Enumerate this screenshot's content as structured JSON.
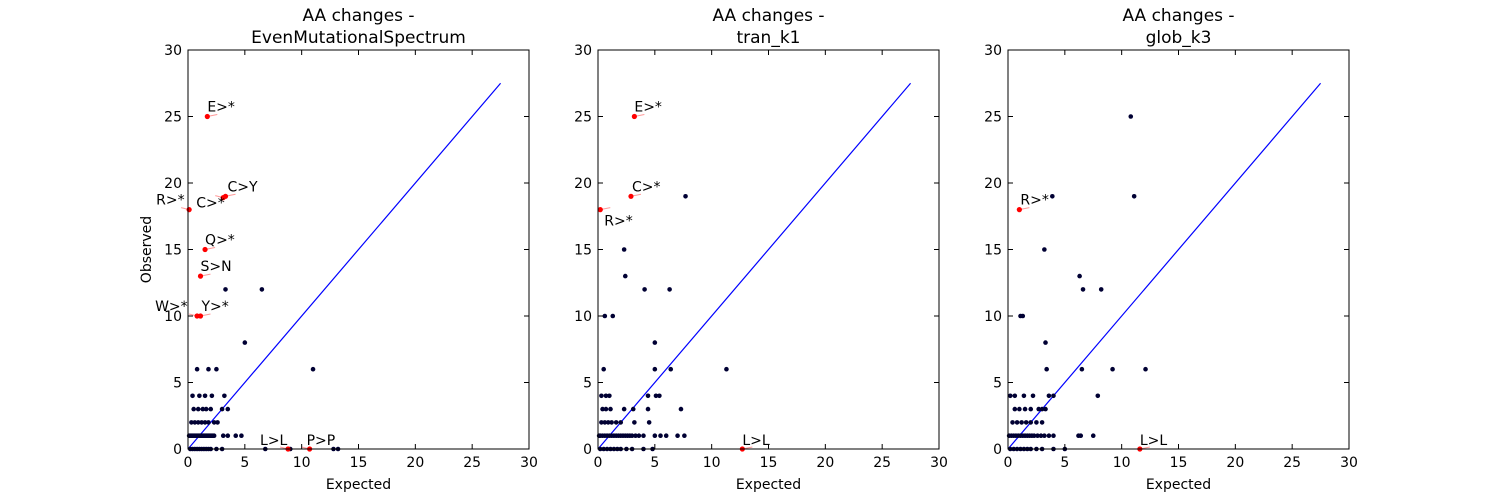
{
  "chart_data": [
    {
      "type": "scatter",
      "title": [
        "AA changes -",
        "EvenMutationalSpectrum"
      ],
      "xlabel": "Expected",
      "ylabel": "Observed",
      "xlim": [
        0,
        30
      ],
      "ylim": [
        0,
        30
      ],
      "xticks": [
        0,
        5,
        10,
        15,
        20,
        25,
        30
      ],
      "yticks": [
        0,
        5,
        10,
        15,
        20,
        25,
        30
      ],
      "diagonal": [
        0,
        27.5
      ],
      "colors": {
        "points": "#000033",
        "highlight": "#ff0000",
        "line": "#0000ff"
      },
      "points": [
        [
          0.1,
          1
        ],
        [
          0.2,
          1
        ],
        [
          0.3,
          1
        ],
        [
          0.4,
          1
        ],
        [
          0.5,
          1
        ],
        [
          0.6,
          1
        ],
        [
          0.7,
          1
        ],
        [
          0.8,
          1
        ],
        [
          0.9,
          1
        ],
        [
          1.0,
          1
        ],
        [
          1.1,
          1
        ],
        [
          1.2,
          1
        ],
        [
          1.3,
          1
        ],
        [
          1.4,
          1
        ],
        [
          1.5,
          1
        ],
        [
          1.6,
          1
        ],
        [
          1.7,
          1
        ],
        [
          1.8,
          1
        ],
        [
          1.9,
          1
        ],
        [
          2.0,
          1
        ],
        [
          2.1,
          1
        ],
        [
          2.2,
          1
        ],
        [
          2.3,
          1
        ],
        [
          0.2,
          0
        ],
        [
          0.4,
          0
        ],
        [
          0.6,
          0
        ],
        [
          0.8,
          0
        ],
        [
          1.0,
          0
        ],
        [
          1.2,
          0
        ],
        [
          1.4,
          0
        ],
        [
          1.6,
          0
        ],
        [
          1.8,
          0
        ],
        [
          2.0,
          0
        ],
        [
          2.5,
          0
        ],
        [
          3.0,
          0
        ],
        [
          0.3,
          2
        ],
        [
          0.6,
          2
        ],
        [
          0.9,
          2
        ],
        [
          1.2,
          2
        ],
        [
          1.5,
          2
        ],
        [
          1.8,
          2
        ],
        [
          2.3,
          2
        ],
        [
          2.6,
          2
        ],
        [
          0.5,
          3
        ],
        [
          0.9,
          3
        ],
        [
          1.3,
          3
        ],
        [
          1.6,
          3
        ],
        [
          2.0,
          3
        ],
        [
          3.0,
          3
        ],
        [
          3.5,
          3
        ],
        [
          0.4,
          4
        ],
        [
          1.0,
          4
        ],
        [
          1.5,
          4
        ],
        [
          2.1,
          4
        ],
        [
          3.2,
          4
        ],
        [
          0.8,
          6
        ],
        [
          1.8,
          6
        ],
        [
          2.5,
          6
        ],
        [
          3.1,
          1
        ],
        [
          3.5,
          1
        ],
        [
          4.2,
          1
        ],
        [
          4.7,
          1
        ],
        [
          3.3,
          12
        ],
        [
          6.5,
          12
        ],
        [
          5.0,
          8
        ],
        [
          11.0,
          6
        ],
        [
          6.8,
          0
        ],
        [
          9.0,
          0
        ],
        [
          12.8,
          0
        ],
        [
          13.2,
          0
        ]
      ],
      "highlights": [
        {
          "label": "E>*",
          "x": 1.7,
          "y": 25
        },
        {
          "label": "C>Y",
          "x": 3.3,
          "y": 19
        },
        {
          "label": "R>*",
          "x": 0.1,
          "y": 18
        },
        {
          "label": "C>*",
          "x": 3.1,
          "y": 18.9
        },
        {
          "label": "Q>*",
          "x": 1.5,
          "y": 15
        },
        {
          "label": "S>N",
          "x": 1.1,
          "y": 13
        },
        {
          "label": "W>*",
          "x": 0.8,
          "y": 10
        },
        {
          "label": "Y>*",
          "x": 1.1,
          "y": 10
        },
        {
          "label": "L>L",
          "x": 8.8,
          "y": 0
        },
        {
          "label": "P>P",
          "x": 10.7,
          "y": 0
        }
      ]
    },
    {
      "type": "scatter",
      "title": [
        "AA changes -",
        "tran_k1"
      ],
      "xlabel": "Expected",
      "ylabel": "",
      "xlim": [
        0,
        30
      ],
      "ylim": [
        0,
        30
      ],
      "xticks": [
        0,
        5,
        10,
        15,
        20,
        25,
        30
      ],
      "yticks": [
        0,
        5,
        10,
        15,
        20,
        25,
        30
      ],
      "diagonal": [
        0,
        27.5
      ],
      "colors": {
        "points": "#000033",
        "highlight": "#ff0000",
        "line": "#0000ff"
      },
      "points": [
        [
          0.1,
          1
        ],
        [
          0.2,
          1
        ],
        [
          0.4,
          1
        ],
        [
          0.6,
          1
        ],
        [
          0.8,
          1
        ],
        [
          1.0,
          1
        ],
        [
          1.2,
          1
        ],
        [
          1.4,
          1
        ],
        [
          1.6,
          1
        ],
        [
          1.8,
          1
        ],
        [
          2.0,
          1
        ],
        [
          2.2,
          1
        ],
        [
          2.4,
          1
        ],
        [
          2.6,
          1
        ],
        [
          2.8,
          1
        ],
        [
          3.0,
          1
        ],
        [
          3.3,
          1
        ],
        [
          3.6,
          1
        ],
        [
          4.0,
          1
        ],
        [
          5.0,
          1
        ],
        [
          5.5,
          1
        ],
        [
          6.0,
          1
        ],
        [
          7.0,
          1
        ],
        [
          7.6,
          1
        ],
        [
          0.2,
          0
        ],
        [
          0.5,
          0
        ],
        [
          0.8,
          0
        ],
        [
          1.1,
          0
        ],
        [
          1.4,
          0
        ],
        [
          1.7,
          0
        ],
        [
          2.0,
          0
        ],
        [
          2.5,
          0
        ],
        [
          3.0,
          0
        ],
        [
          4.0,
          0
        ],
        [
          4.8,
          0
        ],
        [
          0.3,
          2
        ],
        [
          0.6,
          2
        ],
        [
          0.9,
          2
        ],
        [
          1.2,
          2
        ],
        [
          1.6,
          2
        ],
        [
          2.0,
          2
        ],
        [
          3.2,
          2
        ],
        [
          4.5,
          2
        ],
        [
          0.4,
          3
        ],
        [
          0.7,
          3
        ],
        [
          1.1,
          3
        ],
        [
          2.3,
          3
        ],
        [
          3.1,
          3
        ],
        [
          4.4,
          3
        ],
        [
          7.3,
          3
        ],
        [
          0.3,
          4
        ],
        [
          0.7,
          4
        ],
        [
          1.0,
          4
        ],
        [
          4.4,
          4
        ],
        [
          5.1,
          4
        ],
        [
          5.4,
          4
        ],
        [
          0.5,
          6
        ],
        [
          5.0,
          6
        ],
        [
          6.4,
          6
        ],
        [
          11.3,
          6
        ],
        [
          0.6,
          10
        ],
        [
          1.3,
          10
        ],
        [
          2.4,
          13
        ],
        [
          2.3,
          15
        ],
        [
          4.1,
          12
        ],
        [
          6.3,
          12
        ],
        [
          5.0,
          8
        ],
        [
          7.7,
          19
        ]
      ],
      "highlights": [
        {
          "label": "E>*",
          "x": 3.2,
          "y": 25
        },
        {
          "label": "C>*",
          "x": 2.9,
          "y": 19
        },
        {
          "label": "R>*",
          "x": 0.2,
          "y": 18
        },
        {
          "label": "L>L",
          "x": 12.7,
          "y": 0
        }
      ]
    },
    {
      "type": "scatter",
      "title": [
        "AA changes -",
        "glob_k3"
      ],
      "xlabel": "Expected",
      "ylabel": "",
      "xlim": [
        0,
        30
      ],
      "ylim": [
        0,
        30
      ],
      "xticks": [
        0,
        5,
        10,
        15,
        20,
        25,
        30
      ],
      "yticks": [
        0,
        5,
        10,
        15,
        20,
        25,
        30
      ],
      "diagonal": [
        0,
        27.5
      ],
      "colors": {
        "points": "#000033",
        "highlight": "#ff0000",
        "line": "#0000ff"
      },
      "points": [
        [
          0.1,
          1
        ],
        [
          0.3,
          1
        ],
        [
          0.5,
          1
        ],
        [
          0.7,
          1
        ],
        [
          0.9,
          1
        ],
        [
          1.1,
          1
        ],
        [
          1.3,
          1
        ],
        [
          1.5,
          1
        ],
        [
          1.7,
          1
        ],
        [
          1.9,
          1
        ],
        [
          2.1,
          1
        ],
        [
          2.3,
          1
        ],
        [
          2.6,
          1
        ],
        [
          2.9,
          1
        ],
        [
          3.2,
          1
        ],
        [
          3.6,
          1
        ],
        [
          4.0,
          1
        ],
        [
          6.2,
          1
        ],
        [
          6.4,
          1
        ],
        [
          7.5,
          1
        ],
        [
          0.2,
          0
        ],
        [
          0.5,
          0
        ],
        [
          0.8,
          0
        ],
        [
          1.1,
          0
        ],
        [
          1.4,
          0
        ],
        [
          1.7,
          0
        ],
        [
          2.0,
          0
        ],
        [
          2.5,
          0
        ],
        [
          3.0,
          0
        ],
        [
          4.0,
          0
        ],
        [
          5.0,
          0
        ],
        [
          0.4,
          2
        ],
        [
          0.8,
          2
        ],
        [
          1.2,
          2
        ],
        [
          1.6,
          2
        ],
        [
          2.0,
          2
        ],
        [
          2.5,
          2
        ],
        [
          3.0,
          2
        ],
        [
          0.6,
          3
        ],
        [
          1.0,
          3
        ],
        [
          1.5,
          3
        ],
        [
          2.0,
          3
        ],
        [
          2.7,
          3
        ],
        [
          3.0,
          3
        ],
        [
          3.3,
          3
        ],
        [
          0.2,
          4
        ],
        [
          0.6,
          4
        ],
        [
          1.4,
          4
        ],
        [
          2.2,
          4
        ],
        [
          3.6,
          4
        ],
        [
          4.0,
          4
        ],
        [
          7.9,
          4
        ],
        [
          3.4,
          6
        ],
        [
          6.5,
          6
        ],
        [
          9.2,
          6
        ],
        [
          12.1,
          6
        ],
        [
          1.1,
          10
        ],
        [
          1.3,
          10
        ],
        [
          3.3,
          8
        ],
        [
          6.3,
          13
        ],
        [
          6.6,
          12
        ],
        [
          8.2,
          12
        ],
        [
          3.2,
          15
        ],
        [
          3.9,
          19
        ],
        [
          11.1,
          19
        ],
        [
          10.8,
          25
        ]
      ],
      "highlights": [
        {
          "label": "R>*",
          "x": 1.0,
          "y": 18
        },
        {
          "label": "L>L",
          "x": 11.6,
          "y": 0
        }
      ]
    }
  ]
}
